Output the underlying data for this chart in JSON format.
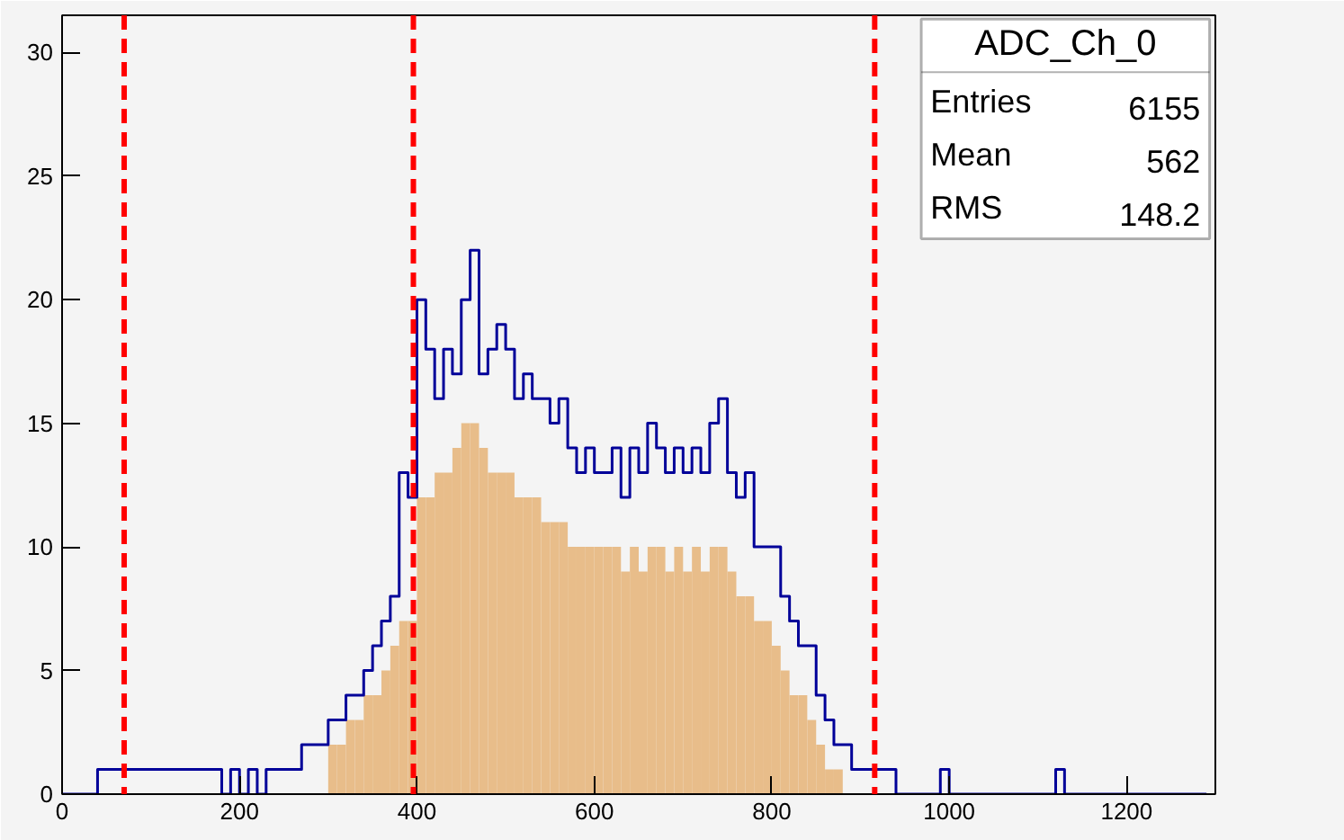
{
  "chart_data": {
    "type": "histogram",
    "title": "ADC_Ch_0",
    "annotations": [
      "Entries",
      "6155",
      "Mean",
      "562",
      "RMS",
      "148.2"
    ],
    "bins": [
      0,
      10,
      20,
      30,
      40,
      50,
      60,
      70,
      80,
      90,
      100,
      110,
      120,
      130,
      140,
      150,
      160,
      170,
      180,
      190,
      200,
      210,
      220,
      230,
      240,
      250,
      260,
      270,
      280,
      290,
      300,
      310,
      320,
      330,
      340,
      350,
      360,
      370,
      380,
      390,
      400,
      410,
      420,
      430,
      440,
      450,
      460,
      470,
      480,
      490,
      500,
      510,
      520,
      530,
      540,
      550,
      560,
      570,
      580,
      590,
      600,
      610,
      620,
      630,
      640,
      650,
      660,
      670,
      680,
      690,
      700,
      710,
      720,
      730,
      740,
      750,
      760,
      770,
      780,
      790,
      800,
      810,
      820,
      830,
      840,
      850,
      860,
      870,
      880,
      890,
      900,
      910,
      920,
      930,
      940,
      950,
      960,
      970,
      980,
      990,
      1000,
      1010,
      1020,
      1030,
      1040,
      1050,
      1060,
      1070,
      1080,
      1090,
      1100,
      1110,
      1120,
      1130,
      1140,
      1150,
      1160,
      1170,
      1180,
      1190,
      1200,
      1210,
      1220,
      1230,
      1240,
      1250,
      1260,
      1270,
      1280,
      1290,
      1300
    ],
    "series": [
      {
        "color": "#e8bd8a",
        "values": [
          0,
          0,
          0,
          0,
          0,
          0,
          0,
          0,
          0,
          0,
          0,
          0,
          0,
          0,
          0,
          0,
          0,
          0,
          0,
          0,
          0,
          0,
          0,
          0,
          0,
          0,
          0,
          0,
          0,
          0,
          2,
          2,
          3,
          3,
          4,
          4,
          5,
          6,
          7,
          7,
          12,
          12,
          13,
          13,
          14,
          15,
          15,
          14,
          13,
          13,
          13,
          12,
          12,
          12,
          11,
          11,
          11,
          10,
          10,
          10,
          10,
          10,
          10,
          9,
          10,
          9,
          10,
          10,
          9,
          10,
          9,
          10,
          9,
          10,
          10,
          9,
          8,
          8,
          7,
          7,
          6,
          5,
          4,
          4,
          3,
          2,
          1,
          1,
          0,
          0,
          0,
          0,
          0,
          0,
          0,
          0,
          0,
          0,
          0,
          0,
          0,
          0,
          0,
          0,
          0,
          0,
          0,
          0,
          0,
          0,
          0,
          0,
          0,
          0,
          0,
          0,
          0,
          0,
          0,
          0,
          0,
          0,
          0,
          0,
          0,
          0,
          0,
          0,
          0,
          0
        ]
      },
      {
        "type": "step",
        "color": "#000099",
        "x": [
          0,
          10,
          20,
          30,
          40,
          50,
          60,
          70,
          80,
          90,
          100,
          110,
          120,
          130,
          140,
          150,
          160,
          170,
          180,
          190,
          200,
          210,
          220,
          230,
          240,
          250,
          260,
          270,
          280,
          290,
          300,
          310,
          320,
          330,
          340,
          350,
          360,
          370,
          380,
          390,
          400,
          410,
          420,
          430,
          440,
          450,
          460,
          470,
          480,
          490,
          500,
          510,
          520,
          530,
          540,
          550,
          560,
          570,
          580,
          590,
          600,
          610,
          620,
          630,
          640,
          650,
          660,
          670,
          680,
          690,
          700,
          710,
          720,
          730,
          740,
          750,
          760,
          770,
          780,
          790,
          800,
          810,
          820,
          830,
          840,
          850,
          860,
          870,
          880,
          890,
          900,
          910,
          920,
          930,
          940,
          950,
          960,
          970,
          980,
          990,
          1000,
          1010,
          1020,
          1030,
          1040,
          1050,
          1060,
          1070,
          1080,
          1090,
          1100,
          1110,
          1120,
          1130,
          1140,
          1150,
          1160,
          1170,
          1180,
          1190,
          1200,
          1210,
          1220,
          1230,
          1240,
          1250,
          1260,
          1270,
          1280,
          1290
        ],
        "values": [
          0,
          0,
          0,
          0,
          1,
          1,
          1,
          1,
          1,
          1,
          1,
          1,
          1,
          1,
          1,
          1,
          1,
          1,
          0,
          1,
          0,
          1,
          0,
          1,
          1,
          1,
          1,
          2,
          2,
          2,
          3,
          3,
          4,
          4,
          5,
          6,
          7,
          8,
          13,
          12,
          20,
          18,
          16,
          18,
          17,
          20,
          22,
          17,
          18,
          19,
          18,
          16,
          17,
          16,
          16,
          15,
          16,
          14,
          13,
          14,
          13,
          13,
          14,
          12,
          14,
          13,
          15,
          14,
          13,
          14,
          13,
          14,
          13,
          15,
          16,
          13,
          12,
          13,
          10,
          10,
          10,
          8,
          7,
          6,
          6,
          4,
          3,
          2,
          2,
          1,
          1,
          1,
          1,
          1,
          0,
          0,
          0,
          0,
          0,
          1,
          0,
          0,
          0,
          0,
          0,
          0,
          0,
          0,
          0,
          0,
          0,
          0,
          1,
          0,
          0,
          0,
          0,
          0,
          0,
          0,
          0,
          0,
          0,
          0,
          0,
          0,
          0,
          0,
          0,
          0
        ]
      }
    ],
    "xlim": [
      0,
      1300
    ],
    "ylim": [
      0,
      31.5
    ],
    "xticks": [
      0,
      200,
      400,
      600,
      800,
      1000,
      1200
    ],
    "yticks": [
      0,
      5,
      10,
      15,
      20,
      25,
      30
    ],
    "grid": false,
    "ref_lines": [
      {
        "axis": "x",
        "value": 70,
        "color": "#ff0000",
        "line_style": "dashed"
      },
      {
        "axis": "x",
        "value": 396,
        "color": "#ff0000",
        "line_style": "dashed"
      },
      {
        "axis": "x",
        "value": 916,
        "color": "#ff0000",
        "line_style": "dashed"
      }
    ]
  }
}
